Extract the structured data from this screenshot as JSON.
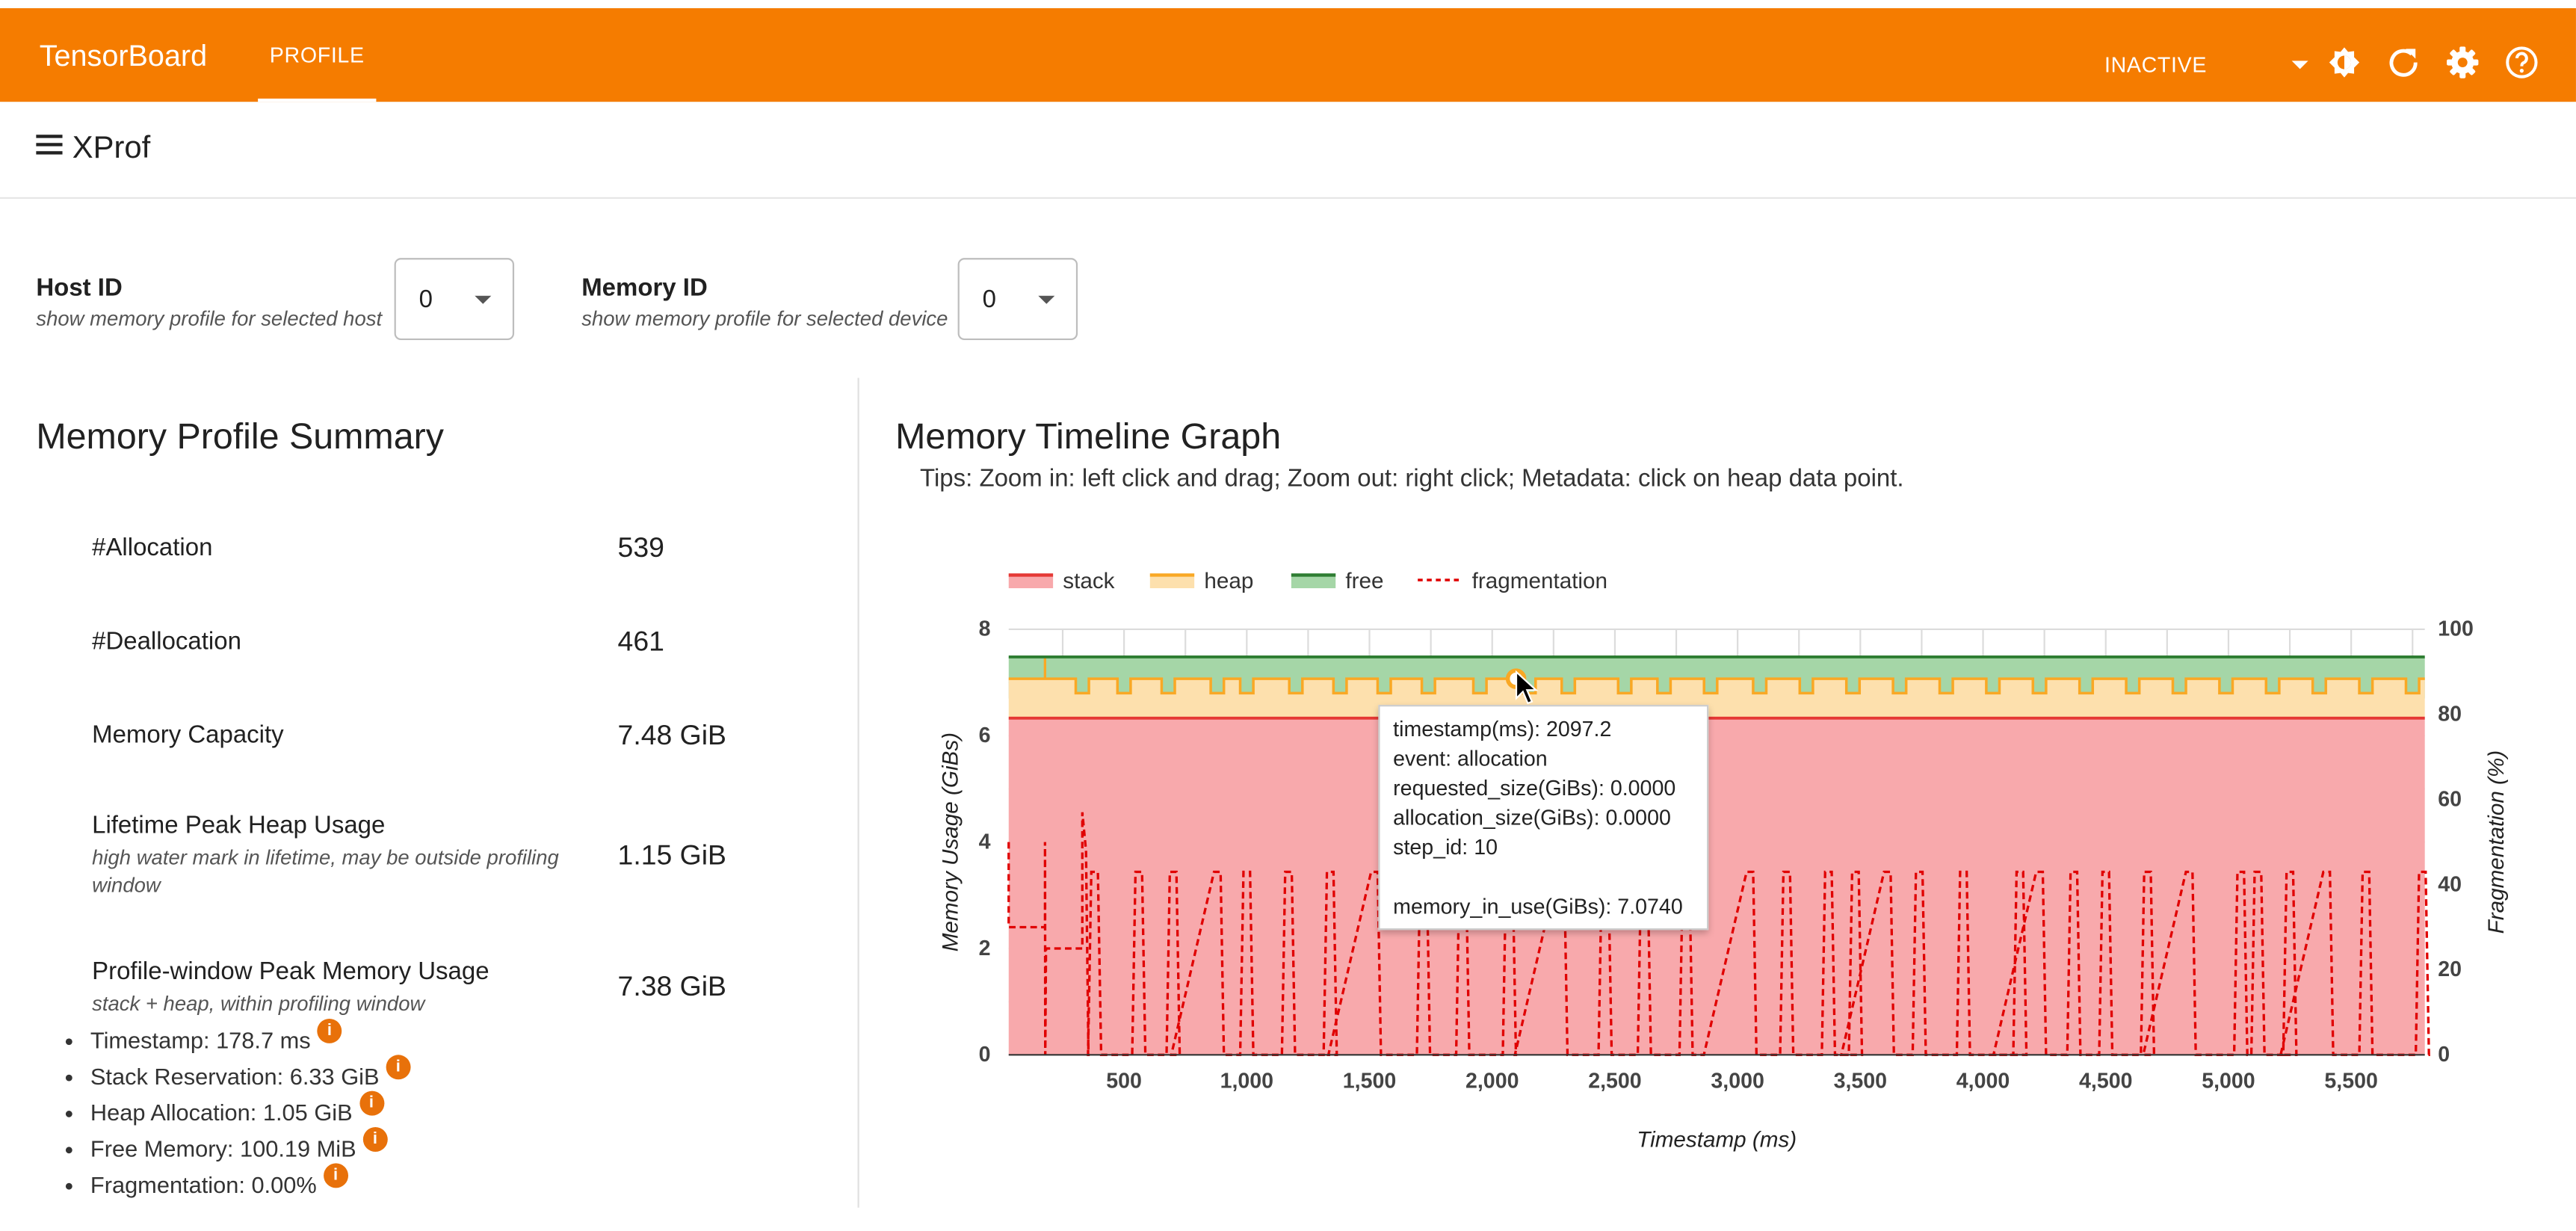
{
  "app": {
    "title": "TensorBoard",
    "active_tab": "PROFILE",
    "status": "INACTIVE"
  },
  "header": {
    "title": "XProf"
  },
  "controls": {
    "host": {
      "label": "Host ID",
      "hint": "show memory profile for selected host",
      "value": "0"
    },
    "memory": {
      "label": "Memory ID",
      "hint": "show memory profile for selected device",
      "value": "0"
    }
  },
  "summary": {
    "title": "Memory Profile Summary",
    "rows": [
      {
        "label": "#Allocation",
        "value": "539"
      },
      {
        "label": "#Deallocation",
        "value": "461"
      },
      {
        "label": "Memory Capacity",
        "value": "7.48 GiB"
      },
      {
        "label": "Lifetime Peak Heap Usage",
        "sub": "high water mark in lifetime, may be outside profiling window",
        "value": "1.15 GiB"
      },
      {
        "label": "Profile-window Peak Memory Usage",
        "sub": "stack + heap, within profiling window",
        "value": "7.38 GiB"
      }
    ],
    "details": [
      "Timestamp: 178.7 ms",
      "Stack Reservation: 6.33 GiB",
      "Heap Allocation: 1.05 GiB",
      "Free Memory: 100.19 MiB",
      "Fragmentation: 0.00%"
    ]
  },
  "timeline": {
    "title": "Memory Timeline Graph",
    "tips": "Tips: Zoom in: left click and drag; Zoom out: right click; Metadata: click on heap data point.",
    "tooltip": {
      "lines": [
        "timestamp(ms): 2097.2",
        "event: allocation",
        "requested_size(GiBs): 0.0000",
        "allocation_size(GiBs): 0.0000",
        "step_id: 10",
        "",
        "memory_in_use(GiBs): 7.0740"
      ]
    }
  },
  "chart_data": {
    "type": "area",
    "title": "",
    "xlabel": "Timestamp (ms)",
    "ylabel": "Memory Usage (GiBs)",
    "y2label": "Fragmentation (%)",
    "xlim": [
      30,
      5800
    ],
    "ylim": [
      0,
      8
    ],
    "y2lim": [
      0,
      100
    ],
    "x_ticks": [
      500,
      1000,
      1500,
      2000,
      2500,
      3000,
      3500,
      4000,
      4500,
      5000,
      5500
    ],
    "x_tick_labels": [
      "500",
      "1,000",
      "1,500",
      "2,000",
      "2,500",
      "3,000",
      "3,500",
      "4,000",
      "4,500",
      "5,000",
      "5,500"
    ],
    "y_ticks": [
      0,
      2,
      4,
      6,
      8
    ],
    "y2_ticks": [
      0,
      20,
      40,
      60,
      80,
      100
    ],
    "legend": [
      "stack",
      "heap",
      "free",
      "fragmentation"
    ],
    "legend_position": "top-left",
    "grid": true,
    "colors": {
      "stack": "#e53935",
      "stack_fill": "#f8a9ac",
      "heap": "#f9a825",
      "heap_fill": "#fde0ad",
      "free": "#2e7d32",
      "free_fill": "#a5d6a7",
      "fragmentation": "#e00000"
    },
    "series": [
      {
        "name": "stack",
        "values_note": "constant",
        "y": 6.33
      },
      {
        "name": "heap",
        "y_high": 7.07,
        "y_low": 6.8
      },
      {
        "name": "free",
        "y": 7.48
      },
      {
        "name": "fragmentation",
        "axis": "right",
        "peak_pct": 43,
        "first_peak_pct": 57
      }
    ],
    "heap_dips_x": [
      330,
      500,
      680,
      880,
      1000,
      1200,
      1380,
      1560,
      1740,
      1950,
      2150,
      2310,
      2540,
      2700,
      2890,
      3090,
      3280,
      3470,
      3660,
      3850,
      4040,
      4230,
      4420,
      4610,
      4800,
      4990,
      5180,
      5370,
      5560,
      5750
    ],
    "frag_spikes_x": [
      380,
      560,
      700,
      880,
      1000,
      1170,
      1340,
      1520,
      1720,
      1880,
      2070,
      2280,
      2460,
      2620,
      2790,
      3050,
      3200,
      3370,
      3480,
      3610,
      3740,
      3920,
      4150,
      4230,
      4370,
      4500,
      4670,
      4840,
      5050,
      5120,
      5250,
      5400,
      5560,
      5790
    ],
    "selected_point": {
      "x": 2097.2,
      "y": 7.074
    }
  }
}
